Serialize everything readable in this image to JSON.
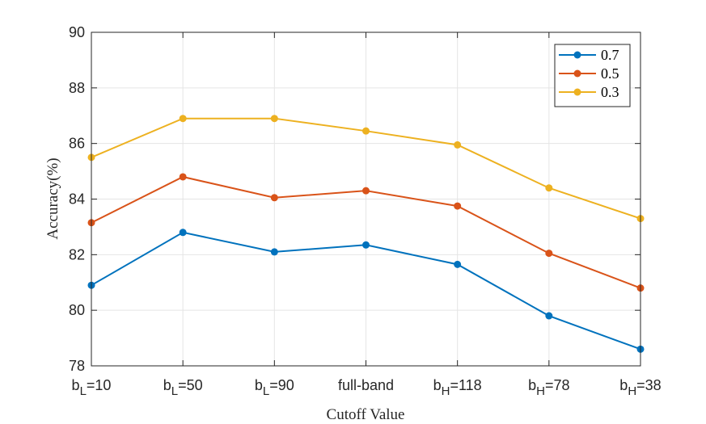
{
  "chart_data": {
    "type": "line",
    "title": "",
    "xlabel": "Cutoff Value",
    "ylabel": "Accuracy(%)",
    "ylim": [
      78,
      90
    ],
    "yticks": [
      78,
      80,
      82,
      84,
      86,
      88,
      90
    ],
    "grid": true,
    "legend_position": "top-right",
    "categories": [
      {
        "base": "b",
        "sub": "L",
        "rest": "=10"
      },
      {
        "base": "b",
        "sub": "L",
        "rest": "=50"
      },
      {
        "base": "b",
        "sub": "L",
        "rest": "=90"
      },
      {
        "base": "full-band",
        "sub": "",
        "rest": ""
      },
      {
        "base": "b",
        "sub": "H",
        "rest": "=118"
      },
      {
        "base": "b",
        "sub": "H",
        "rest": "=78"
      },
      {
        "base": "b",
        "sub": "H",
        "rest": "=38"
      }
    ],
    "series": [
      {
        "name": "0.7",
        "color": "#0072BD",
        "values": [
          80.9,
          82.8,
          82.1,
          82.35,
          81.65,
          79.8,
          78.6
        ]
      },
      {
        "name": "0.5",
        "color": "#D95319",
        "values": [
          83.15,
          84.8,
          84.05,
          84.3,
          83.75,
          82.05,
          80.8
        ]
      },
      {
        "name": "0.3",
        "color": "#EDB120",
        "values": [
          85.5,
          86.9,
          86.9,
          86.45,
          85.95,
          84.4,
          83.3
        ]
      }
    ]
  }
}
